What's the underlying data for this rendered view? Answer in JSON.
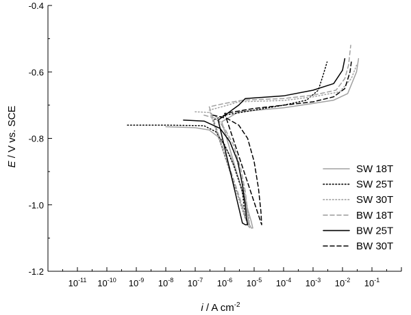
{
  "chart_data": {
    "type": "line",
    "xscale": "log",
    "xlim": [
      1e-12,
      1
    ],
    "ylim": [
      -1.2,
      -0.4
    ],
    "xlabel_parts": [
      "i",
      " / A cm",
      "-2"
    ],
    "ylabel_parts": [
      "E",
      " / V vs. SCE"
    ],
    "x_ticks": [
      {
        "base": "10",
        "exp": "-11",
        "value": 1e-11
      },
      {
        "base": "10",
        "exp": "-10",
        "value": 1e-10
      },
      {
        "base": "10",
        "exp": "-9",
        "value": 1e-09
      },
      {
        "base": "10",
        "exp": "-8",
        "value": 1e-08
      },
      {
        "base": "10",
        "exp": "-7",
        "value": 1e-07
      },
      {
        "base": "10",
        "exp": "-6",
        "value": 1e-06
      },
      {
        "base": "10",
        "exp": "-5",
        "value": 1e-05
      },
      {
        "base": "10",
        "exp": "-4",
        "value": 0.0001
      },
      {
        "base": "10",
        "exp": "-3",
        "value": 0.001
      },
      {
        "base": "10",
        "exp": "-2",
        "value": 0.01
      },
      {
        "base": "10",
        "exp": "-1",
        "value": 0.1
      }
    ],
    "y_ticks": [
      {
        "label": "-0.4",
        "value": -0.4
      },
      {
        "label": "-0.6",
        "value": -0.6
      },
      {
        "label": "-0.8",
        "value": -0.8
      },
      {
        "label": "-1.0",
        "value": -1.0
      },
      {
        "label": "-1.2",
        "value": -1.2
      }
    ],
    "legend_position": "lower-right",
    "series": [
      {
        "name": "SW 18T",
        "color": "#a0a0a0",
        "dash": "solid",
        "points": [
          [
            1e-08,
            -0.765
          ],
          [
            1e-07,
            -0.768
          ],
          [
            3e-07,
            -0.775
          ],
          [
            7e-07,
            -0.8
          ],
          [
            1.5e-06,
            -0.85
          ],
          [
            3e-06,
            -0.92
          ],
          [
            5e-06,
            -1.0
          ],
          [
            7e-06,
            -1.06
          ],
          [
            8e-06,
            -1.07
          ],
          [
            9e-06,
            -1.07
          ],
          [
            8e-06,
            -1.05
          ],
          [
            8e-07,
            -0.75
          ],
          [
            3e-06,
            -0.72
          ],
          [
            0.0001,
            -0.708
          ],
          [
            0.001,
            -0.695
          ],
          [
            0.005,
            -0.685
          ],
          [
            0.015,
            -0.665
          ],
          [
            0.03,
            -0.6
          ],
          [
            0.035,
            -0.56
          ]
        ]
      },
      {
        "name": "SW 25T",
        "color": "#000000",
        "dash": "dot",
        "points": [
          [
            5e-10,
            -0.76
          ],
          [
            1e-08,
            -0.76
          ],
          [
            2e-07,
            -0.762
          ],
          [
            5e-07,
            -0.78
          ],
          [
            1e-06,
            -0.82
          ],
          [
            2e-06,
            -0.88
          ],
          [
            4e-06,
            -0.96
          ],
          [
            5e-06,
            -1.04
          ],
          [
            6e-06,
            -1.05
          ],
          [
            5e-06,
            -1.04
          ],
          [
            4e-07,
            -0.745
          ],
          [
            1e-06,
            -0.73
          ],
          [
            1e-05,
            -0.715
          ],
          [
            0.0001,
            -0.7
          ],
          [
            0.0006,
            -0.685
          ],
          [
            0.0015,
            -0.655
          ],
          [
            0.0022,
            -0.61
          ],
          [
            0.003,
            -0.57
          ]
        ]
      },
      {
        "name": "SW 30T",
        "color": "#a0a0a0",
        "dash": "dot",
        "points": [
          [
            1e-07,
            -0.72
          ],
          [
            3e-07,
            -0.722
          ],
          [
            6e-07,
            -0.74
          ],
          [
            1.2e-06,
            -0.79
          ],
          [
            2.5e-06,
            -0.86
          ],
          [
            4.5e-06,
            -0.95
          ],
          [
            6.5e-06,
            -1.03
          ],
          [
            7e-06,
            -1.07
          ],
          [
            6e-06,
            -1.06
          ],
          [
            3e-07,
            -0.715
          ],
          [
            8e-07,
            -0.705
          ],
          [
            1.5e-06,
            -0.698
          ],
          [
            3e-06,
            -0.69
          ],
          [
            0.0001,
            -0.686
          ],
          [
            0.001,
            -0.675
          ],
          [
            0.008,
            -0.66
          ],
          [
            0.02,
            -0.62
          ],
          [
            0.03,
            -0.58
          ]
        ]
      },
      {
        "name": "BW 18T",
        "color": "#a0a0a0",
        "dash": "dash",
        "points": [
          [
            2e-07,
            -0.73
          ],
          [
            5e-07,
            -0.74
          ],
          [
            1e-06,
            -0.77
          ],
          [
            2e-06,
            -0.82
          ],
          [
            3.5e-06,
            -0.89
          ],
          [
            5e-06,
            -0.96
          ],
          [
            6e-06,
            -1.02
          ],
          [
            6.5e-06,
            -1.06
          ],
          [
            6e-06,
            -1.05
          ],
          [
            3e-07,
            -0.705
          ],
          [
            1e-06,
            -0.695
          ],
          [
            2e-06,
            -0.69
          ],
          [
            4e-06,
            -0.685
          ],
          [
            0.0001,
            -0.68
          ],
          [
            0.001,
            -0.67
          ],
          [
            0.006,
            -0.655
          ],
          [
            0.012,
            -0.62
          ],
          [
            0.016,
            -0.58
          ],
          [
            0.019,
            -0.52
          ]
        ]
      },
      {
        "name": "BW 25T",
        "color": "#000000",
        "dash": "solid",
        "points": [
          [
            4e-08,
            -0.745
          ],
          [
            2e-07,
            -0.748
          ],
          [
            7e-07,
            -0.77
          ],
          [
            1.5e-06,
            -0.81
          ],
          [
            2.8e-06,
            -0.87
          ],
          [
            4e-06,
            -0.94
          ],
          [
            5e-06,
            -1.0
          ],
          [
            5.5e-06,
            -1.04
          ],
          [
            6e-06,
            -1.06
          ],
          [
            5e-06,
            -1.06
          ],
          [
            4e-06,
            -1.055
          ],
          [
            6e-07,
            -0.745
          ],
          [
            3e-06,
            -0.7
          ],
          [
            5e-06,
            -0.68
          ],
          [
            0.0001,
            -0.672
          ],
          [
            0.001,
            -0.655
          ],
          [
            0.005,
            -0.635
          ],
          [
            0.01,
            -0.595
          ],
          [
            0.012,
            -0.56
          ]
        ]
      },
      {
        "name": "BW 30T",
        "color": "#000000",
        "dash": "dash",
        "points": [
          [
            4e-07,
            -0.73
          ],
          [
            1.2e-06,
            -0.74
          ],
          [
            3e-06,
            -0.76
          ],
          [
            6e-06,
            -0.8
          ],
          [
            1e-05,
            -0.87
          ],
          [
            1.4e-05,
            -0.95
          ],
          [
            1.7e-05,
            -1.02
          ],
          [
            1.8e-05,
            -1.06
          ],
          [
            1e-06,
            -0.725
          ],
          [
            1e-05,
            -0.71
          ],
          [
            0.0001,
            -0.7
          ],
          [
            0.001,
            -0.69
          ],
          [
            0.005,
            -0.675
          ],
          [
            0.012,
            -0.65
          ],
          [
            0.018,
            -0.6
          ],
          [
            0.02,
            -0.57
          ]
        ]
      }
    ]
  }
}
